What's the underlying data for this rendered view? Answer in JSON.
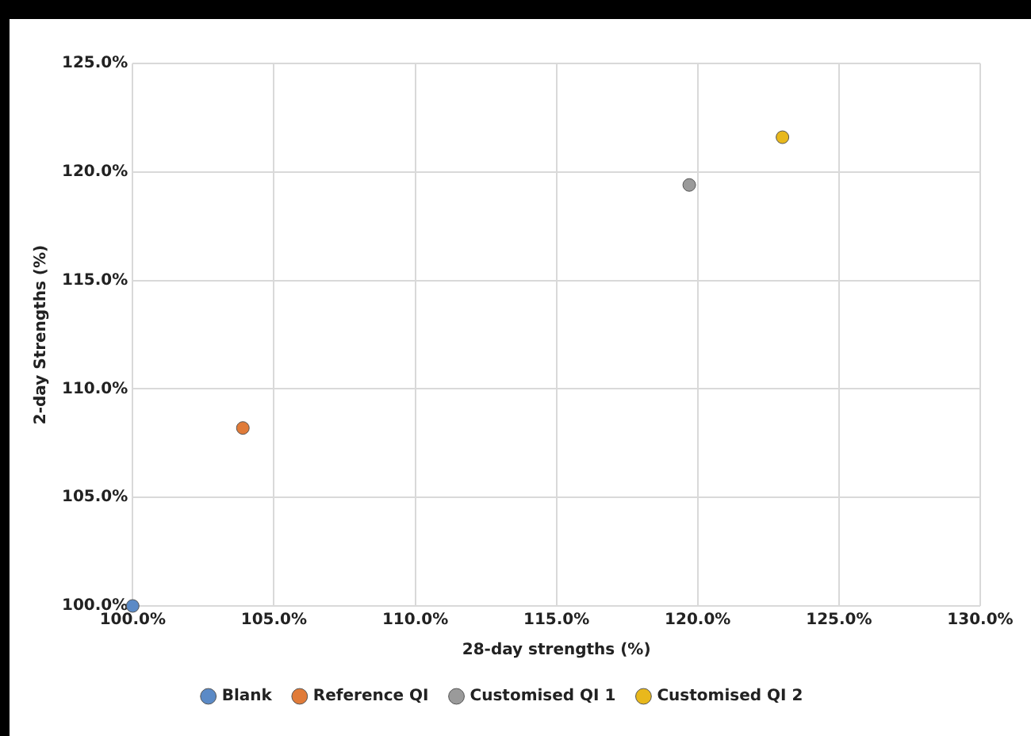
{
  "chart_data": {
    "type": "scatter",
    "xlabel": "28-day strengths (%)",
    "ylabel": "2-day Strengths (%)",
    "xlim": [
      100,
      130
    ],
    "xticks": [
      {
        "value": 100,
        "label": "100.0%"
      },
      {
        "value": 105,
        "label": "105.0%"
      },
      {
        "value": 110,
        "label": "110.0%"
      },
      {
        "value": 115,
        "label": "115.0%"
      },
      {
        "value": 120,
        "label": "120.0%"
      },
      {
        "value": 125,
        "label": "125.0%"
      },
      {
        "value": 130,
        "label": "130.0%"
      }
    ],
    "ylim": [
      100,
      125
    ],
    "yticks": [
      {
        "value": 100,
        "label": "100.0%"
      },
      {
        "value": 105,
        "label": "105.0%"
      },
      {
        "value": 110,
        "label": "110.0%"
      },
      {
        "value": 115,
        "label": "115.0%"
      },
      {
        "value": 120,
        "label": "120.0%"
      },
      {
        "value": 125,
        "label": "125.0%"
      }
    ],
    "series": [
      {
        "name": "Blank",
        "color": "#5b8ac6",
        "x": [
          100
        ],
        "values": [
          100
        ]
      },
      {
        "name": "Reference QI",
        "color": "#e07b39",
        "x": [
          103.9
        ],
        "values": [
          108.2
        ]
      },
      {
        "name": "Customised QI 1",
        "color": "#9a9a9a",
        "x": [
          119.7
        ],
        "values": [
          119.4
        ]
      },
      {
        "name": "Customised QI 2",
        "color": "#e8b81c",
        "x": [
          123
        ],
        "values": [
          121.6
        ]
      }
    ],
    "grid": true,
    "legend": "bottom",
    "marker": "circle"
  }
}
